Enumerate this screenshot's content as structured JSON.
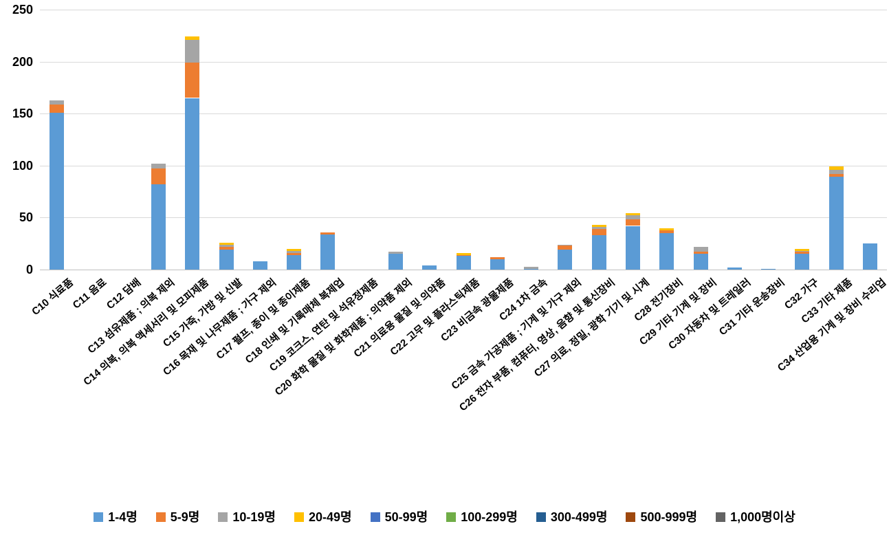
{
  "chart_data": {
    "type": "bar",
    "stacked": true,
    "title": "",
    "xlabel": "",
    "ylabel": "",
    "ylim": [
      0,
      250
    ],
    "yticks": [
      0,
      50,
      100,
      150,
      200,
      250
    ],
    "grid": true,
    "legend_position": "bottom",
    "categories": [
      "C10 식료품",
      "C11 음료",
      "C12 담배",
      "C13 섬유제품 ; 의복 제외",
      "C14 의복, 의복 액세서리 및 모피제품",
      "C15 가죽, 가방 및 신발",
      "C16 목재 및 나무제품 ; 가구 제외",
      "C17 펄프, 종이 및 종이제품",
      "C18 인쇄 및 기록매체 복제업",
      "C19 코크스, 연탄 및 석유정제품",
      "C20 화학 물질 및 화학제품 ; 의약품 제외",
      "C21 의료용 물질 및 의약품",
      "C22 고무 및 플라스틱제품",
      "C23 비금속 광물제품",
      "C24 1차 금속",
      "C25 금속 가공제품 ; 기계 및 가구 제외",
      "C26 전자 부품, 컴퓨터, 영상, 음향 및 통신장비",
      "C27 의료, 정밀, 광학 기기 및 시계",
      "C28 전기장비",
      "C29 기타 기계 및 장비",
      "C30 자동차 및 트레일러",
      "C31 기타 운송장비",
      "C32 가구",
      "C33 기타 제품",
      "C34 산업용 기계 및 장비 수리업"
    ],
    "series": [
      {
        "name": "1-4명",
        "color": "#5B9BD5",
        "values": [
          151,
          0,
          0,
          82,
          165,
          19,
          8,
          14,
          34,
          0,
          15,
          4,
          13,
          10,
          1,
          19,
          33,
          42,
          35,
          15,
          2,
          1,
          15,
          89,
          25
        ]
      },
      {
        "name": "5-9명",
        "color": "#ED7D31",
        "values": [
          8,
          0,
          0,
          15,
          34,
          3,
          0,
          2,
          2,
          0,
          0,
          0,
          1,
          2,
          0,
          4,
          6,
          6,
          3,
          2,
          0,
          0,
          2,
          3,
          0
        ]
      },
      {
        "name": "10-19명",
        "color": "#A5A5A5",
        "values": [
          4,
          0,
          0,
          5,
          22,
          2,
          0,
          2,
          0,
          0,
          2,
          0,
          0,
          0,
          2,
          1,
          2,
          4,
          0,
          5,
          0,
          0,
          1,
          4,
          0
        ]
      },
      {
        "name": "20-49명",
        "color": "#FFC000",
        "values": [
          0,
          0,
          0,
          0,
          3,
          2,
          0,
          2,
          0,
          0,
          0,
          0,
          2,
          0,
          0,
          0,
          2,
          2,
          2,
          0,
          0,
          0,
          2,
          3,
          0
        ]
      },
      {
        "name": "50-99명",
        "color": "#4472C4",
        "values": [
          0,
          0,
          0,
          0,
          0,
          0,
          0,
          0,
          0,
          0,
          0,
          0,
          0,
          0,
          0,
          0,
          0,
          0,
          0,
          0,
          0,
          0,
          0,
          0,
          0
        ]
      },
      {
        "name": "100-299명",
        "color": "#70AD47",
        "values": [
          0,
          0,
          0,
          0,
          0,
          0,
          0,
          0,
          0,
          0,
          0,
          0,
          0,
          0,
          0,
          0,
          0,
          0,
          0,
          0,
          0,
          0,
          0,
          0,
          0
        ]
      },
      {
        "name": "300-499명",
        "color": "#255E91",
        "values": [
          0,
          0,
          0,
          0,
          0,
          0,
          0,
          0,
          0,
          0,
          0,
          0,
          0,
          0,
          0,
          0,
          0,
          0,
          0,
          0,
          0,
          0,
          0,
          0,
          0
        ]
      },
      {
        "name": "500-999명",
        "color": "#9E480E",
        "values": [
          0,
          0,
          0,
          0,
          0,
          0,
          0,
          0,
          0,
          0,
          0,
          0,
          0,
          0,
          0,
          0,
          0,
          0,
          0,
          0,
          0,
          0,
          0,
          0,
          0
        ]
      },
      {
        "name": "1,000명이상",
        "color": "#636363",
        "values": [
          0,
          0,
          0,
          0,
          0,
          0,
          0,
          0,
          0,
          0,
          0,
          0,
          0,
          0,
          0,
          0,
          0,
          0,
          0,
          0,
          0,
          0,
          0,
          0,
          0
        ]
      }
    ]
  }
}
